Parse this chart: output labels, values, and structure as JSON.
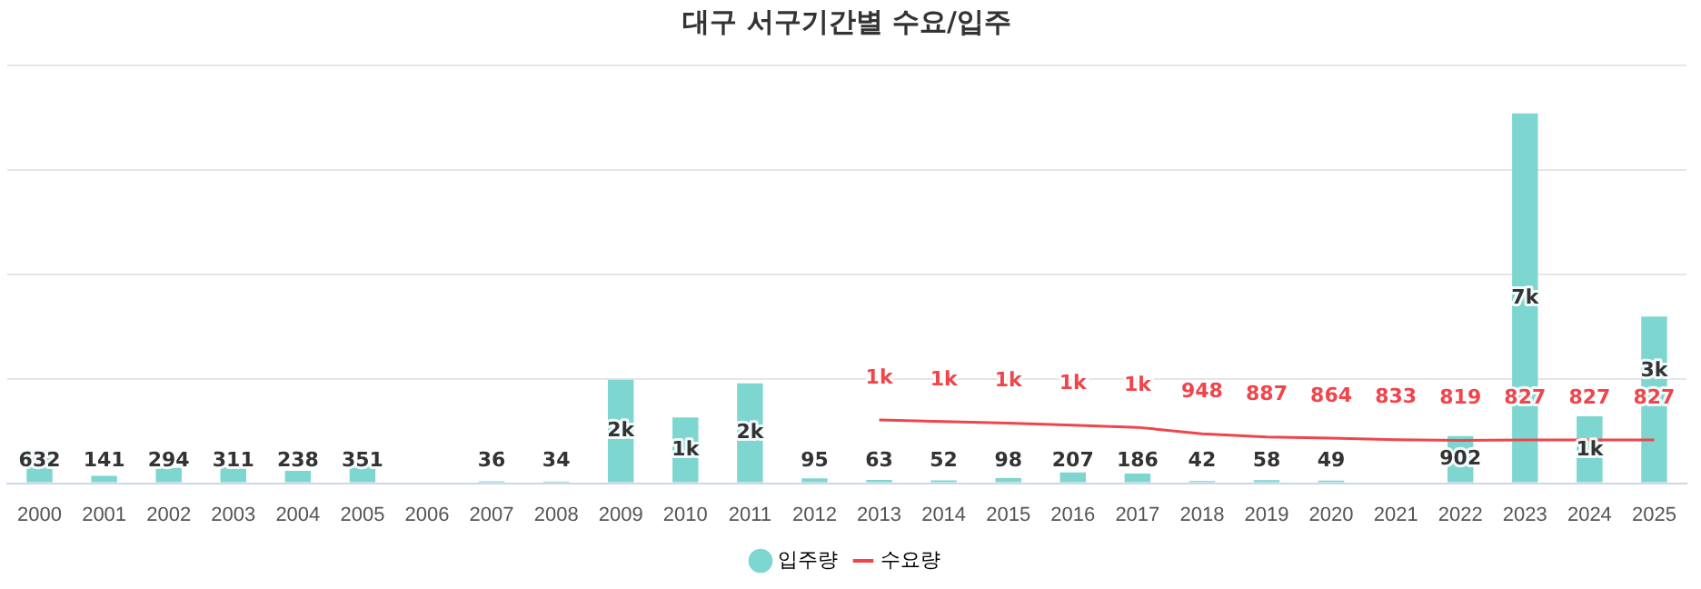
{
  "chart_data": {
    "type": "bar",
    "title": "대구 서구기간별 수요/입주",
    "categories": [
      "2000",
      "2001",
      "2002",
      "2003",
      "2004",
      "2005",
      "2006",
      "2007",
      "2008",
      "2009",
      "2010",
      "2011",
      "2012",
      "2013",
      "2014",
      "2015",
      "2016",
      "2017",
      "2018",
      "2019",
      "2020",
      "2021",
      "2022",
      "2023",
      "2024",
      "2025"
    ],
    "tick_labels": "x",
    "grid": "y",
    "legend": "bottom",
    "series": [
      {
        "name": "입주량",
        "color": "#7dd6cf",
        "values": [
          632,
          141,
          294,
          311,
          238,
          351,
          null,
          36,
          34,
          1980,
          1260,
          1910,
          95,
          63,
          52,
          98,
          207,
          186,
          42,
          58,
          49,
          null,
          902,
          7080,
          1280,
          3190
        ],
        "value_labels": [
          "632",
          "141",
          "294",
          "311",
          "238",
          "351",
          null,
          "36",
          "34",
          "2k",
          "1k",
          "2k",
          "95",
          "63",
          "52",
          "98",
          "207",
          "186",
          "42",
          "58",
          "49",
          null,
          "902",
          "7k",
          "1k",
          "3k"
        ]
      },
      {
        "name": "수요량",
        "type": "line",
        "color": "#f0454b",
        "marker": "none",
        "values": [
          null,
          null,
          null,
          null,
          null,
          null,
          null,
          null,
          null,
          null,
          null,
          null,
          null,
          1210,
          1180,
          1150,
          1110,
          1070,
          948,
          887,
          864,
          833,
          819,
          827,
          827,
          827
        ],
        "value_labels": [
          null,
          null,
          null,
          null,
          null,
          null,
          null,
          null,
          null,
          null,
          null,
          null,
          null,
          "1k",
          "1k",
          "1k",
          "1k",
          "1k",
          "948",
          "887",
          "864",
          "833",
          "819",
          "827",
          "827",
          "827"
        ]
      }
    ]
  }
}
